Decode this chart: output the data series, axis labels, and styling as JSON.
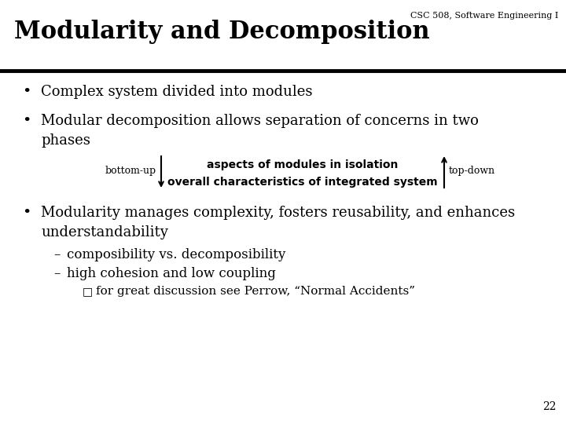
{
  "bg_color": "#ffffff",
  "header_text": "CSC 508, Software Engineering I",
  "title": "Modularity and Decomposition",
  "title_fontsize": 22,
  "header_fontsize": 8,
  "bullet1": "Complex system divided into modules",
  "bullet2_line1": "Modular decomposition allows separation of concerns in two",
  "bullet2_line2": "phases",
  "diagram_bottom_up": "bottom-up",
  "diagram_top_down": "top-down",
  "diagram_line1": "aspects of modules in isolation",
  "diagram_line2": "overall characteristics of integrated system",
  "bullet3_line1": "Modularity manages complexity, fosters reusability, and enhances",
  "bullet3_line2": "understandability",
  "sub1": "composibility vs. decomposibility",
  "sub2": "high cohesion and low coupling",
  "subsub": "for great discussion see Perrow, “Normal Accidents”",
  "page_num": "22",
  "body_fontsize": 13,
  "sub_fontsize": 12,
  "subsub_fontsize": 11
}
